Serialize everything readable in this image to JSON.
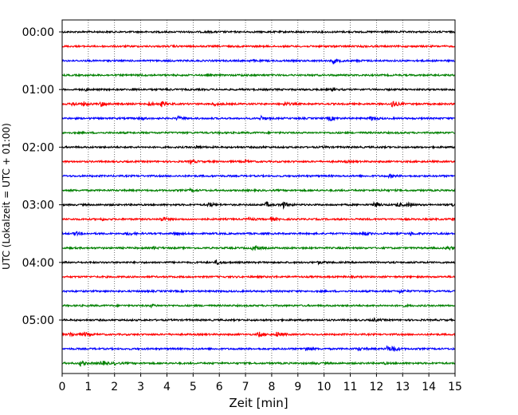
{
  "chart_data": {
    "type": "line",
    "title": "",
    "xlabel": "Zeit  [min]",
    "ylabel": "UTC (Lokalzeit = UTC + 01:00)",
    "xlim": [
      0,
      15
    ],
    "x_ticks": [
      0,
      1,
      2,
      3,
      4,
      5,
      6,
      7,
      8,
      9,
      10,
      11,
      12,
      13,
      14,
      15
    ],
    "y_tick_labels": [
      "00:00",
      "01:00",
      "02:00",
      "03:00",
      "04:00",
      "05:00"
    ],
    "traces_per_label": 4,
    "grid": "vertical dotted at each minute",
    "trace_colors": [
      "#000000",
      "#ff0000",
      "#0000ff",
      "#008000"
    ],
    "traces": [
      {
        "start": "00:00",
        "events": [
          [
            5.5,
            0.5
          ],
          [
            12.0,
            0.6
          ]
        ]
      },
      {
        "start": "00:15",
        "events": [
          [
            4.2,
            0.4
          ],
          [
            11.5,
            0.4
          ]
        ]
      },
      {
        "start": "00:30",
        "events": [
          [
            10.35,
            3.2
          ],
          [
            7.2,
            0.6
          ],
          [
            11.3,
            0.5
          ]
        ]
      },
      {
        "start": "00:45",
        "events": [
          [
            3.0,
            0.5
          ],
          [
            6.8,
            0.5
          ]
        ]
      },
      {
        "start": "01:00",
        "events": [
          [
            0.9,
            1.0
          ],
          [
            2.7,
            0.6
          ],
          [
            4.0,
            0.6
          ],
          [
            10.3,
            1.0
          ]
        ]
      },
      {
        "start": "01:15",
        "events": [
          [
            0.4,
            2.0
          ],
          [
            0.8,
            2.4
          ],
          [
            1.5,
            3.0
          ],
          [
            3.3,
            2.4
          ],
          [
            3.8,
            2.8
          ],
          [
            5.8,
            2.0
          ],
          [
            8.5,
            2.2
          ],
          [
            12.6,
            4.8
          ]
        ]
      },
      {
        "start": "01:30",
        "events": [
          [
            3.0,
            1.6
          ],
          [
            4.4,
            2.2
          ],
          [
            7.6,
            2.6
          ],
          [
            10.2,
            3.0
          ],
          [
            11.8,
            2.4
          ]
        ]
      },
      {
        "start": "01:45",
        "events": [
          [
            6.0,
            0.4
          ]
        ]
      },
      {
        "start": "02:00",
        "events": [
          [
            5.1,
            2.0
          ],
          [
            7.5,
            0.8
          ],
          [
            10.0,
            0.7
          ]
        ]
      },
      {
        "start": "02:15",
        "events": [
          [
            4.9,
            2.2
          ],
          [
            7.0,
            1.0
          ],
          [
            10.8,
            0.8
          ]
        ]
      },
      {
        "start": "02:30",
        "events": [
          [
            12.5,
            1.6
          ]
        ]
      },
      {
        "start": "02:45",
        "events": [
          [
            4.9,
            1.6
          ],
          [
            12.2,
            0.8
          ]
        ]
      },
      {
        "start": "03:00",
        "events": [
          [
            5.6,
            2.8
          ],
          [
            7.8,
            3.0
          ],
          [
            8.4,
            4.6
          ],
          [
            11.9,
            3.4
          ],
          [
            12.8,
            2.4
          ],
          [
            13.2,
            2.0
          ],
          [
            14.9,
            2.0
          ]
        ]
      },
      {
        "start": "03:15",
        "events": [
          [
            1.5,
            1.2
          ],
          [
            3.8,
            2.8
          ],
          [
            7.1,
            1.6
          ],
          [
            8.0,
            2.2
          ],
          [
            14.9,
            1.6
          ]
        ]
      },
      {
        "start": "03:30",
        "events": [
          [
            0.5,
            2.2
          ],
          [
            2.5,
            1.8
          ],
          [
            4.3,
            2.0
          ],
          [
            11.5,
            2.4
          ],
          [
            13.3,
            1.8
          ]
        ]
      },
      {
        "start": "03:45",
        "events": [
          [
            3.5,
            1.6
          ],
          [
            7.3,
            3.8
          ],
          [
            14.7,
            2.6
          ]
        ]
      },
      {
        "start": "04:00",
        "events": [
          [
            5.9,
            2.6
          ],
          [
            9.8,
            1.4
          ]
        ]
      },
      {
        "start": "04:15",
        "events": [
          [
            8.0,
            0.5
          ]
        ]
      },
      {
        "start": "04:30",
        "events": [
          [
            12.9,
            1.8
          ]
        ]
      },
      {
        "start": "04:45",
        "events": [
          [
            3.4,
            1.4
          ],
          [
            13.0,
            0.8
          ]
        ]
      },
      {
        "start": "05:00",
        "events": [
          [
            11.9,
            1.6
          ]
        ]
      },
      {
        "start": "05:15",
        "events": [
          [
            0.3,
            2.4
          ],
          [
            0.85,
            2.4
          ],
          [
            7.5,
            3.2
          ],
          [
            8.2,
            3.4
          ]
        ]
      },
      {
        "start": "05:30",
        "events": [
          [
            9.3,
            2.6
          ],
          [
            11.3,
            1.8
          ],
          [
            12.4,
            2.8
          ],
          [
            12.6,
            3.4
          ]
        ]
      },
      {
        "start": "05:45",
        "events": [
          [
            0.7,
            3.0
          ],
          [
            1.5,
            3.0
          ],
          [
            2.0,
            1.2
          ],
          [
            9.6,
            0.8
          ],
          [
            12.3,
            0.8
          ]
        ]
      }
    ]
  }
}
